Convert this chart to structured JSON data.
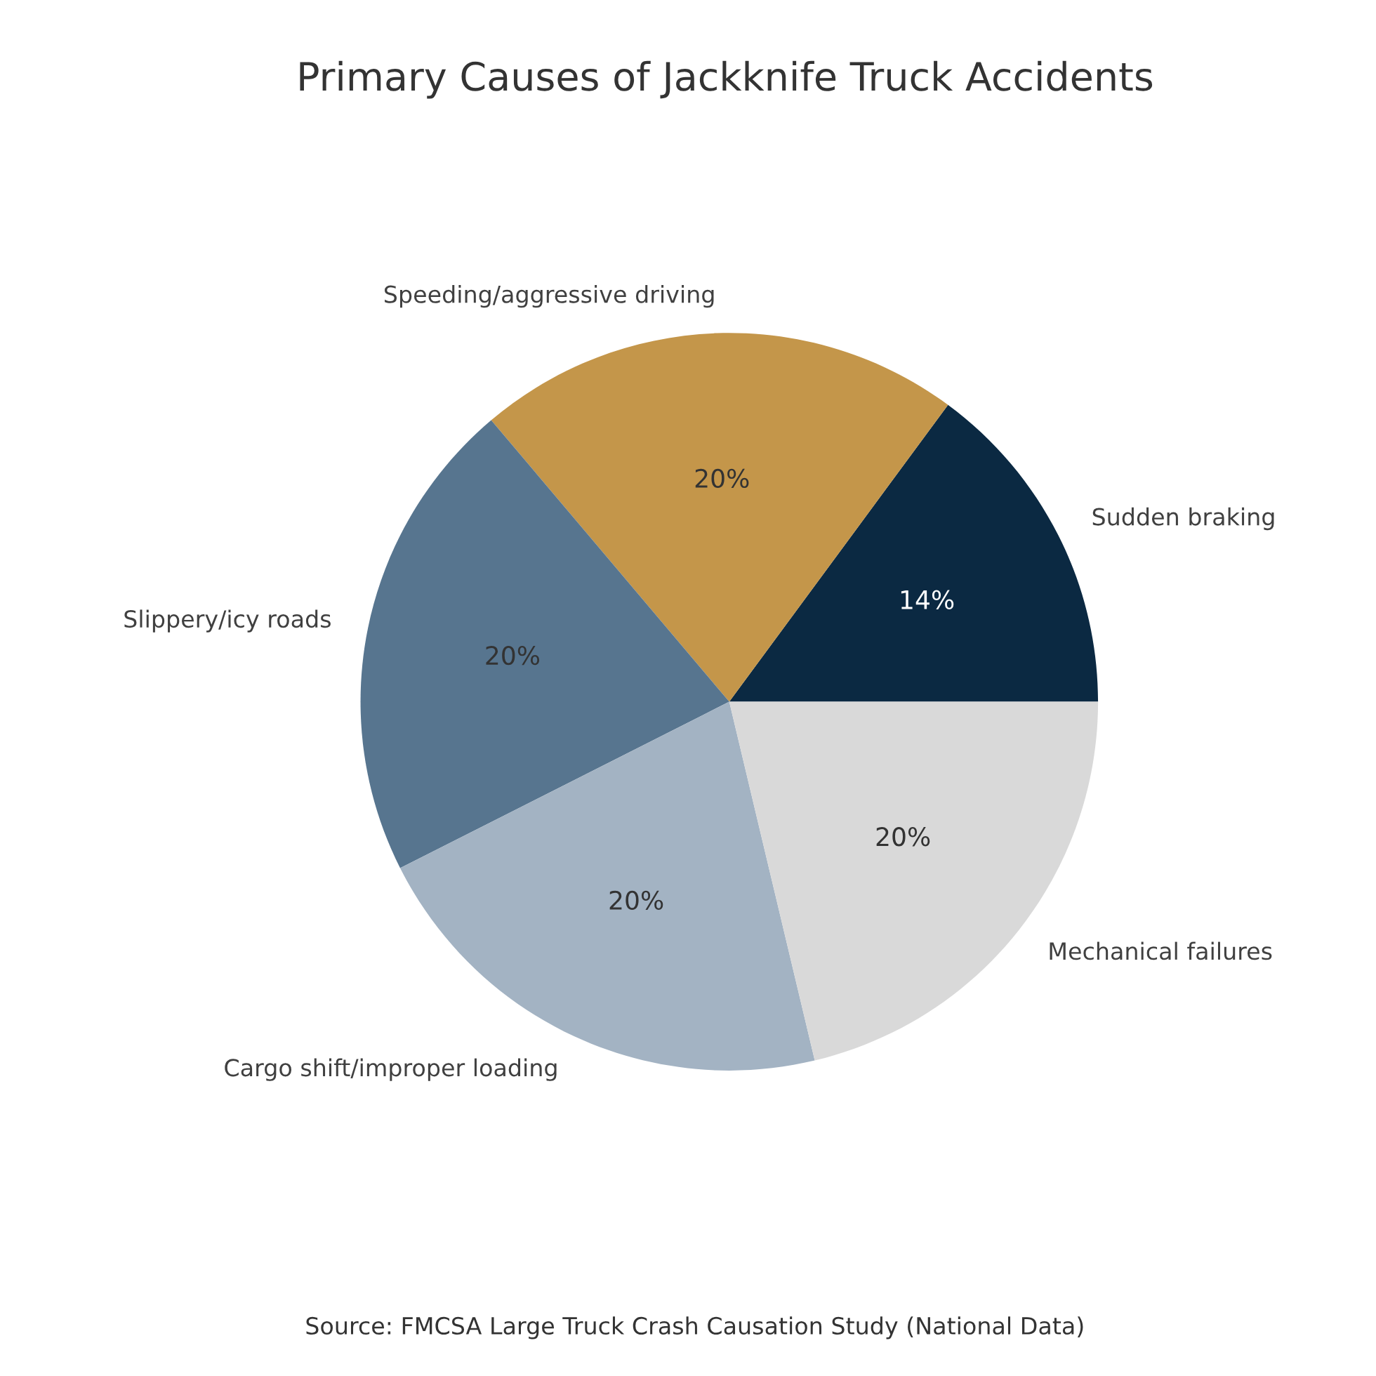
{
  "chart_data": {
    "type": "pie",
    "title": "Primary Causes of Jackknife Truck Accidents",
    "categories": [
      "Sudden braking",
      "Speeding/aggressive driving",
      "Slippery/icy roads",
      "Cargo shift/improper loading",
      "Mechanical failures"
    ],
    "values": [
      14,
      20,
      20,
      20,
      20
    ],
    "value_labels": [
      "14%",
      "20%",
      "20%",
      "20%",
      "20%"
    ],
    "colors": [
      "#0b2942",
      "#c4964a",
      "#57758f",
      "#a3b3c3",
      "#d9d9d9"
    ],
    "annotations": [
      "Source: FMCSA Large Truck Crash Causation Study (National Data)"
    ]
  }
}
